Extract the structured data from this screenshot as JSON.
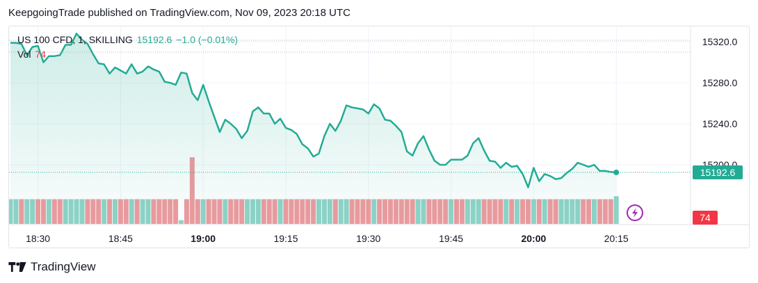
{
  "header": {
    "published": "KeepgoingTrade published on TradingView.com, Nov 09, 2023 20:18 UTC"
  },
  "legend": {
    "symbol": "US 100 CFD, 1, SKILLING",
    "last_value": "15192.6",
    "change": "−1.0 (−0.01%)",
    "vol_label": "Vol",
    "vol_value": "74"
  },
  "footer": {
    "brand": "TradingView"
  },
  "colors": {
    "line": "#22ab94",
    "area_top": "#22ab94",
    "vol_up": "#8fd3c7",
    "vol_down": "#ee9a9e",
    "vol_up_bright": "#a8dfd5",
    "price_badge": "#22ab94",
    "vol_badge": "#f23645"
  },
  "icons": {
    "flash": "lightning-icon"
  },
  "chart_data": {
    "type": "area",
    "title": "",
    "xlabel": "",
    "ylabel": "",
    "x_ticks": [
      {
        "label": "18:30",
        "bold": false
      },
      {
        "label": "18:45",
        "bold": false
      },
      {
        "label": "19:00",
        "bold": true
      },
      {
        "label": "19:15",
        "bold": false
      },
      {
        "label": "19:30",
        "bold": false
      },
      {
        "label": "19:45",
        "bold": false
      },
      {
        "label": "20:00",
        "bold": true
      },
      {
        "label": "20:15",
        "bold": false
      }
    ],
    "y_ticks": [
      "15320.0",
      "15280.0",
      "15240.0",
      "15200.0"
    ],
    "y_tick_values": [
      15320,
      15280,
      15240,
      15200
    ],
    "ylim": [
      15162,
      15335
    ],
    "time_start": "18:25",
    "time_step_minutes": 1,
    "series": [
      {
        "values": [
          15319,
          15319,
          15318,
          15307,
          15315,
          15316,
          15300,
          15306,
          15306,
          15307,
          15317,
          15317,
          15328,
          15322,
          15318,
          15308,
          15299,
          15298,
          15289,
          15295,
          15292,
          15289,
          15298,
          15289,
          15291,
          15296,
          15293,
          15291,
          15281,
          15280,
          15278,
          15290,
          15289,
          15270,
          15263,
          15278,
          15262,
          15247,
          15232,
          15244,
          15240,
          15235,
          15226,
          15233,
          15252,
          15256,
          15250,
          15250,
          15240,
          15245,
          15236,
          15234,
          15230,
          15220,
          15216,
          15208,
          15211,
          15228,
          15240,
          15233,
          15243,
          15258,
          15256,
          15255,
          15254,
          15250,
          15259,
          15255,
          15244,
          15243,
          15238,
          15232,
          15213,
          15209,
          15221,
          15228,
          15215,
          15204,
          15200,
          15200,
          15205,
          15205,
          15205,
          15209,
          15221,
          15226,
          15214,
          15204,
          15203,
          15197,
          15202,
          15198,
          15199,
          15191,
          15178,
          15197,
          15184,
          15191,
          15189,
          15186,
          15187,
          15192,
          15196,
          15202,
          15200,
          15198,
          15200,
          15194,
          15194,
          15193,
          15192.6
        ]
      }
    ],
    "volume": {
      "up": [
        true,
        true,
        false,
        true,
        true,
        false,
        false,
        true,
        false,
        false,
        true,
        true,
        true,
        true,
        false,
        false,
        false,
        true,
        false,
        true,
        false,
        false,
        true,
        false,
        true,
        true,
        false,
        false,
        false,
        false,
        false,
        true,
        false,
        false,
        false,
        true,
        false,
        false,
        false,
        true,
        false,
        false,
        false,
        true,
        true,
        true,
        false,
        false,
        false,
        true,
        false,
        false,
        false,
        false,
        false,
        false,
        true,
        true,
        true,
        false,
        true,
        true,
        false,
        false,
        false,
        false,
        true,
        false,
        false,
        false,
        false,
        false,
        false,
        false,
        true,
        true,
        false,
        false,
        false,
        false,
        true,
        false,
        false,
        true,
        true,
        true,
        false,
        false,
        false,
        false,
        true,
        false,
        true,
        false,
        false,
        true,
        false,
        true,
        false,
        false,
        true,
        true,
        true,
        true,
        false,
        false,
        true,
        false,
        false,
        false,
        true
      ],
      "values": [
        66,
        66,
        66,
        66,
        66,
        66,
        66,
        66,
        66,
        66,
        66,
        66,
        66,
        66,
        66,
        66,
        66,
        66,
        66,
        66,
        66,
        66,
        66,
        66,
        66,
        66,
        66,
        66,
        66,
        66,
        66,
        66,
        66,
        66,
        66,
        66,
        66,
        66,
        66,
        66,
        66,
        66,
        66,
        66,
        66,
        66,
        66,
        66,
        66,
        66,
        66,
        66,
        66,
        66,
        66,
        66,
        66,
        66,
        66,
        66,
        66,
        66,
        66,
        66,
        66,
        66,
        66,
        66,
        66,
        66,
        66,
        66,
        66,
        66,
        66,
        66,
        66,
        66,
        66,
        66,
        66,
        66,
        66,
        66,
        66,
        66,
        66,
        66,
        66,
        66,
        66,
        66,
        66,
        66,
        66,
        66,
        66,
        66,
        66,
        66,
        66,
        66,
        66,
        66,
        66,
        66,
        66,
        66,
        66,
        66,
        74
      ],
      "special": [
        {
          "index": 31,
          "value": 10
        },
        {
          "index": 33,
          "value": 178
        }
      ],
      "max": 260
    },
    "last_price": "15192.6",
    "last_volume": "74",
    "grid": true
  }
}
